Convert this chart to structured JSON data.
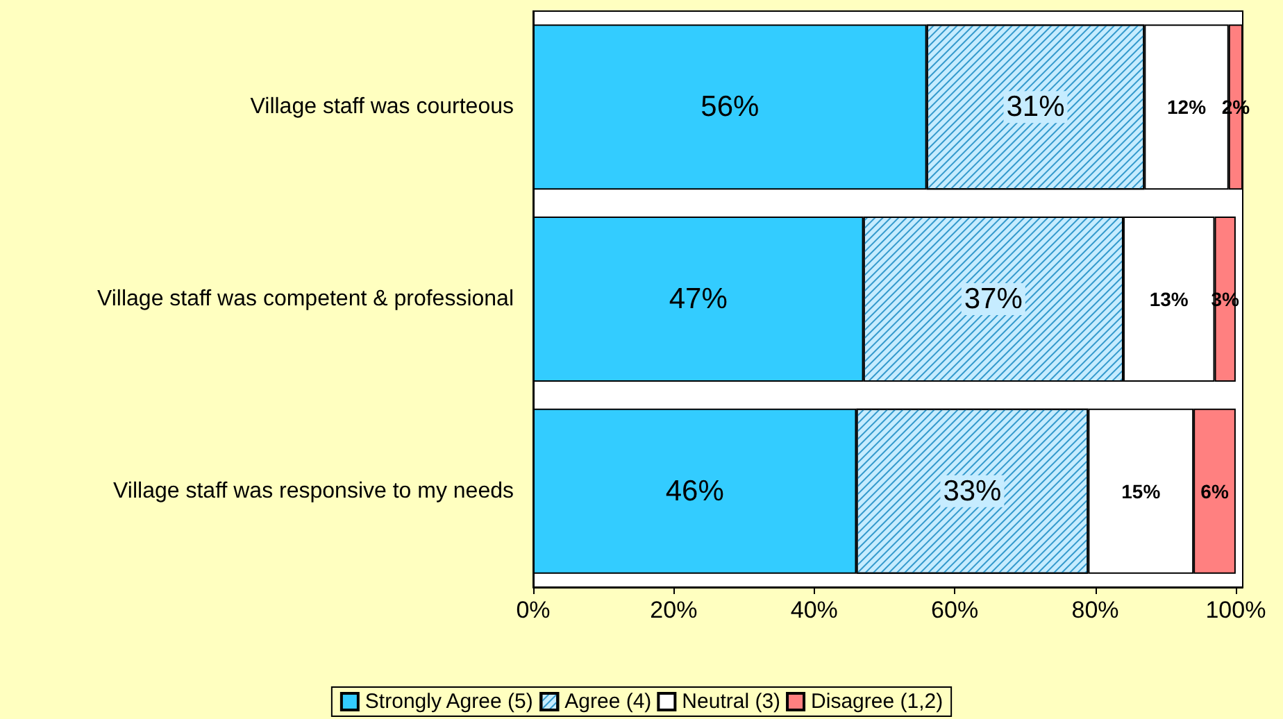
{
  "chart_data": {
    "type": "bar",
    "orientation": "horizontal",
    "stacked": true,
    "categories": [
      "Village staff was courteous",
      "Village staff was competent & professional",
      "Village staff was responsive to my needs"
    ],
    "series": [
      {
        "name": "Strongly Agree (5)",
        "color": "#33ccff",
        "values": [
          56,
          47,
          46
        ],
        "value_labels": [
          "56%",
          "47%",
          "46%"
        ]
      },
      {
        "name": "Agree (4)",
        "color": "#c6ecff",
        "values": [
          31,
          37,
          33
        ],
        "value_labels": [
          "31%",
          "37%",
          "33%"
        ]
      },
      {
        "name": "Neutral (3)",
        "color": "#ffffff",
        "values": [
          12,
          13,
          15
        ],
        "value_labels": [
          "12%",
          "13%",
          "15%"
        ]
      },
      {
        "name": "Disagree (1,2)",
        "color": "#ff8080",
        "values": [
          2,
          3,
          6
        ],
        "value_labels": [
          "2%",
          "3%",
          "6%"
        ]
      }
    ],
    "xlim": [
      0,
      101
    ],
    "xticks": [
      {
        "value": 0,
        "label": "0%"
      },
      {
        "value": 20,
        "label": "20%"
      },
      {
        "value": 40,
        "label": "40%"
      },
      {
        "value": 60,
        "label": "60%"
      },
      {
        "value": 80,
        "label": "80%"
      },
      {
        "value": 100,
        "label": "100%"
      }
    ],
    "grid": false,
    "legend": "bottom"
  }
}
